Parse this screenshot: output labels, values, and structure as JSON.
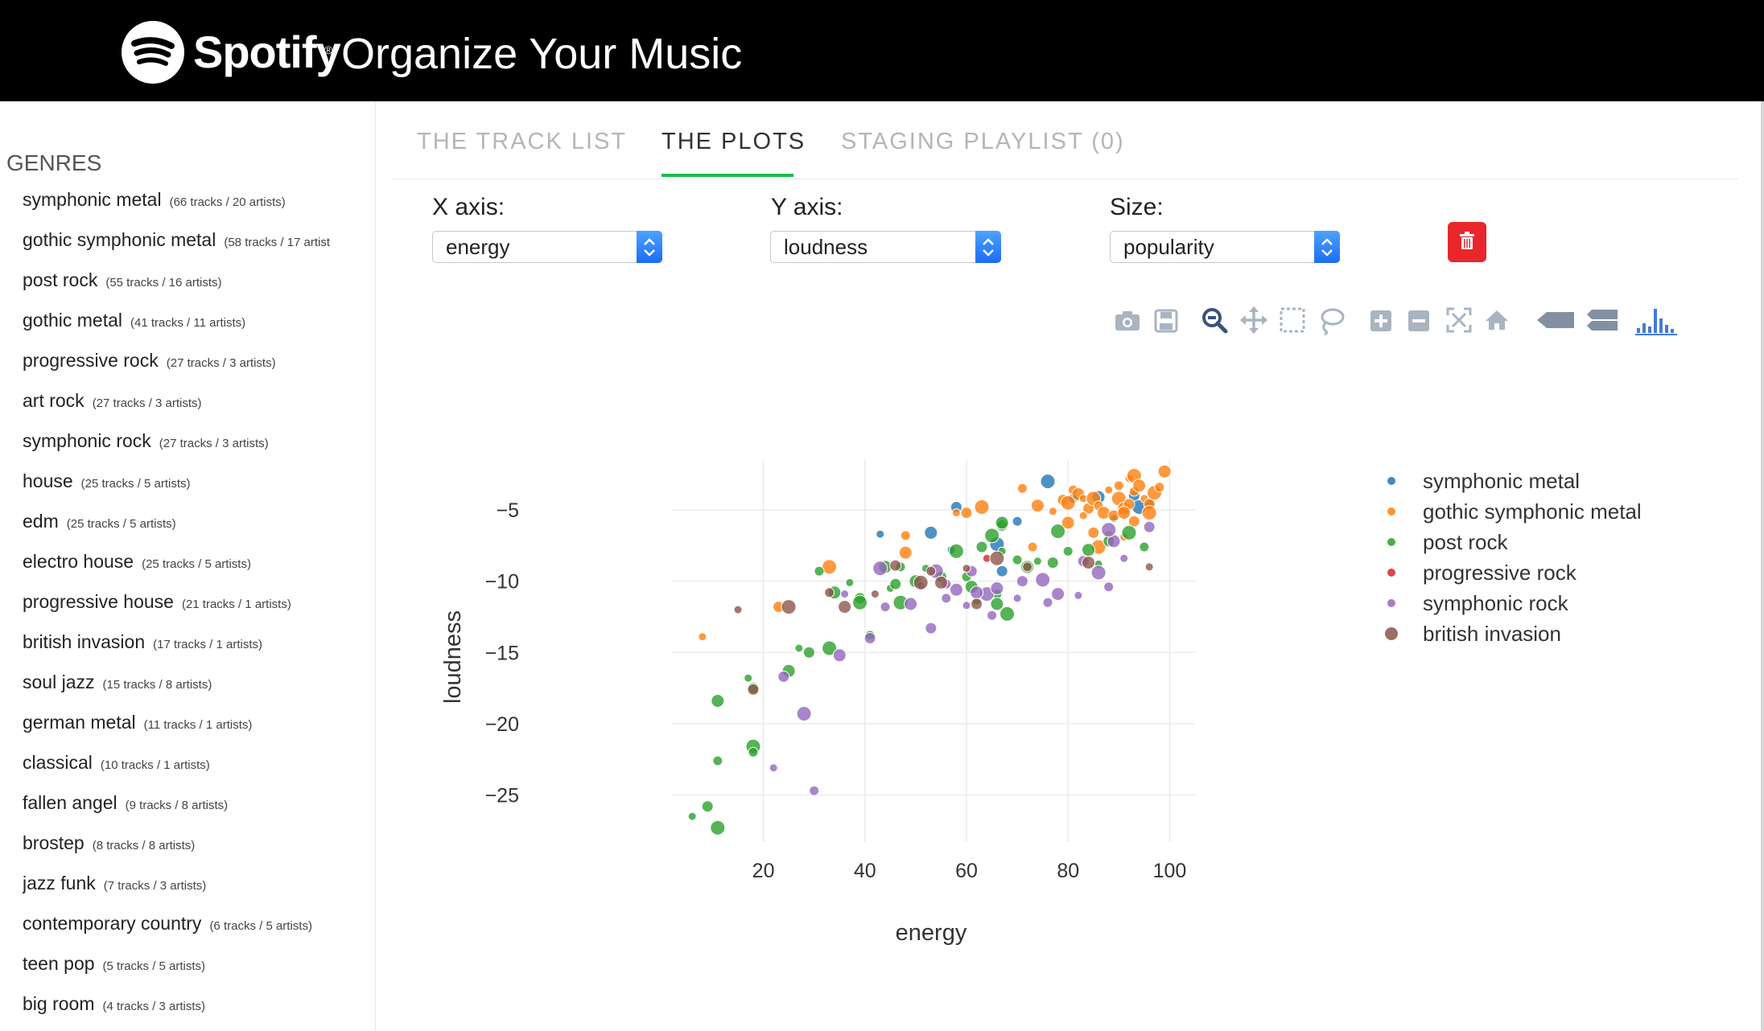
{
  "app": {
    "brand": "Spotify",
    "brand_mark": "®",
    "title": "Organize Your Music"
  },
  "sidebar": {
    "title": "GENRES",
    "genres": [
      {
        "name": "symphonic metal",
        "count": "(66 tracks / 20 artists)"
      },
      {
        "name": "gothic symphonic metal",
        "count": "(58 tracks / 17 artist"
      },
      {
        "name": "post rock",
        "count": "(55 tracks / 16 artists)"
      },
      {
        "name": "gothic metal",
        "count": "(41 tracks / 11 artists)"
      },
      {
        "name": "progressive rock",
        "count": "(27 tracks / 3 artists)"
      },
      {
        "name": "art rock",
        "count": "(27 tracks / 3 artists)"
      },
      {
        "name": "symphonic rock",
        "count": "(27 tracks / 3 artists)"
      },
      {
        "name": "house",
        "count": "(25 tracks / 5 artists)"
      },
      {
        "name": "edm",
        "count": "(25 tracks / 5 artists)"
      },
      {
        "name": "electro house",
        "count": "(25 tracks / 5 artists)"
      },
      {
        "name": "progressive house",
        "count": "(21 tracks / 1 artists)"
      },
      {
        "name": "british invasion",
        "count": "(17 tracks / 1 artists)"
      },
      {
        "name": "soul jazz",
        "count": "(15 tracks / 8 artists)"
      },
      {
        "name": "german metal",
        "count": "(11 tracks / 1 artists)"
      },
      {
        "name": "classical",
        "count": "(10 tracks / 1 artists)"
      },
      {
        "name": "fallen angel",
        "count": "(9 tracks / 8 artists)"
      },
      {
        "name": "brostep",
        "count": "(8 tracks / 8 artists)"
      },
      {
        "name": "jazz funk",
        "count": "(7 tracks / 3 artists)"
      },
      {
        "name": "contemporary country",
        "count": "(6 tracks / 5 artists)"
      },
      {
        "name": "teen pop",
        "count": "(5 tracks / 5 artists)"
      },
      {
        "name": "big room",
        "count": "(4 tracks / 3 artists)"
      }
    ]
  },
  "tabs": [
    {
      "label": "THE TRACK LIST",
      "active": false
    },
    {
      "label": "THE PLOTS",
      "active": true
    },
    {
      "label": "STAGING PLAYLIST (0)",
      "active": false
    }
  ],
  "controls": {
    "x_axis": {
      "label": "X axis:",
      "value": "energy"
    },
    "y_axis": {
      "label": "Y axis:",
      "value": "loudness"
    },
    "size": {
      "label": "Size:",
      "value": "popularity"
    }
  },
  "toolbar": [
    "camera-icon",
    "save-icon",
    "zoom-icon",
    "pan-icon",
    "box-select-icon",
    "lasso-select-icon",
    "zoom-in-icon",
    "zoom-out-icon",
    "autoscale-icon",
    "reset-axes-icon",
    "hover-closest-icon",
    "hover-compare-icon",
    "plotly-logo-icon"
  ],
  "chart_data": {
    "type": "scatter",
    "xlabel": "energy",
    "ylabel": "loudness",
    "xlim": [
      2,
      105
    ],
    "ylim": [
      -28.3,
      -1.5
    ],
    "xticks": [
      20,
      40,
      60,
      80,
      100
    ],
    "yticks": [
      -5,
      -10,
      -15,
      -20,
      -25
    ],
    "xtick_labels": [
      "20",
      "40",
      "60",
      "80",
      "100"
    ],
    "ytick_labels": [
      "−5",
      "−10",
      "−15",
      "−20",
      "−25"
    ],
    "grid": true,
    "legend_position": "right",
    "series": [
      {
        "name": "symphonic metal",
        "color": "#1f77b4",
        "points": [
          [
            43,
            -6.7
          ],
          [
            58,
            -4.8
          ],
          [
            76,
            -3
          ],
          [
            81,
            -4.2
          ],
          [
            86,
            -4.1
          ],
          [
            89,
            -5.6
          ],
          [
            93,
            -4
          ],
          [
            66,
            -7.4
          ],
          [
            70,
            -5.8
          ],
          [
            53,
            -6.6
          ],
          [
            57,
            -7.8
          ],
          [
            67,
            -9.3
          ],
          [
            94,
            -4.8
          ],
          [
            96,
            -4.6
          ]
        ]
      },
      {
        "name": "gothic symphonic metal",
        "color": "#ff7f0e",
        "points": [
          [
            8,
            -13.9
          ],
          [
            23,
            -11.8
          ],
          [
            33,
            -9
          ],
          [
            48,
            -6.8
          ],
          [
            48,
            -8
          ],
          [
            58,
            -5.2
          ],
          [
            60,
            -5.2
          ],
          [
            63,
            -4.8
          ],
          [
            71,
            -3.5
          ],
          [
            74,
            -4.7
          ],
          [
            77,
            -5.1
          ],
          [
            79,
            -4.3
          ],
          [
            80,
            -4.5
          ],
          [
            81,
            -3.6
          ],
          [
            82,
            -3.9
          ],
          [
            83,
            -4.2
          ],
          [
            84,
            -4.9
          ],
          [
            85,
            -4.2
          ],
          [
            86,
            -4.7
          ],
          [
            87,
            -5.2
          ],
          [
            88,
            -3.6
          ],
          [
            89,
            -5.4
          ],
          [
            90,
            -4.2
          ],
          [
            90,
            -3.3
          ],
          [
            91,
            -4.9
          ],
          [
            92,
            -2.8
          ],
          [
            92,
            -4.6
          ],
          [
            93,
            -2.6
          ],
          [
            93,
            -3.7
          ],
          [
            94,
            -3.3
          ],
          [
            95,
            -4.2
          ],
          [
            96,
            -4.6
          ],
          [
            97,
            -3.8
          ],
          [
            98,
            -3.4
          ],
          [
            99,
            -2.3
          ],
          [
            83,
            -5.4
          ],
          [
            85,
            -6.6
          ],
          [
            86,
            -7.6
          ],
          [
            88,
            -6.8
          ],
          [
            91,
            -5.2
          ],
          [
            91,
            -6.9
          ],
          [
            93,
            -5.8
          ],
          [
            96,
            -5.2
          ],
          [
            73,
            -7.6
          ],
          [
            80,
            -5.9
          ]
        ]
      },
      {
        "name": "post rock",
        "color": "#2ca02c",
        "points": [
          [
            6,
            -26.5
          ],
          [
            9,
            -25.8
          ],
          [
            11,
            -27.3
          ],
          [
            11,
            -22.6
          ],
          [
            11,
            -18.4
          ],
          [
            17,
            -16.8
          ],
          [
            18,
            -17.5
          ],
          [
            18,
            -21.6
          ],
          [
            18,
            -22
          ],
          [
            25,
            -16.3
          ],
          [
            27,
            -14.7
          ],
          [
            29,
            -15
          ],
          [
            33,
            -14.7
          ],
          [
            31,
            -9.3
          ],
          [
            34,
            -10.8
          ],
          [
            37,
            -10.1
          ],
          [
            39,
            -11.2
          ],
          [
            39,
            -11.5
          ],
          [
            41,
            -13.8
          ],
          [
            44,
            -9
          ],
          [
            45,
            -10.5
          ],
          [
            46,
            -10.2
          ],
          [
            47,
            -11.5
          ],
          [
            47,
            -9
          ],
          [
            50,
            -10
          ],
          [
            52,
            -9.1
          ],
          [
            55,
            -9.7
          ],
          [
            58,
            -7.9
          ],
          [
            60,
            -9.7
          ],
          [
            61,
            -10.4
          ],
          [
            62,
            -11.4
          ],
          [
            63,
            -7.6
          ],
          [
            65,
            -6.8
          ],
          [
            66,
            -10.9
          ],
          [
            66,
            -11.6
          ],
          [
            67,
            -7.9
          ],
          [
            67,
            -6.1
          ],
          [
            68,
            -12.3
          ],
          [
            70,
            -8.5
          ],
          [
            72,
            -9
          ],
          [
            74,
            -8.6
          ],
          [
            77,
            -8.7
          ],
          [
            78,
            -6.5
          ],
          [
            80,
            -7.9
          ],
          [
            84,
            -7.8
          ],
          [
            86,
            -8.8
          ],
          [
            88,
            -7.2
          ],
          [
            92,
            -6.6
          ],
          [
            95,
            -7.6
          ],
          [
            67,
            -5.9
          ]
        ]
      },
      {
        "name": "progressive rock",
        "color": "#d62728",
        "points": [
          [
            64,
            -8.4
          ]
        ]
      },
      {
        "name": "symphonic rock",
        "color": "#9467bd",
        "points": [
          [
            22,
            -23.1
          ],
          [
            24,
            -16.7
          ],
          [
            28,
            -19.3
          ],
          [
            30,
            -24.7
          ],
          [
            35,
            -15.2
          ],
          [
            36,
            -10.9
          ],
          [
            41,
            -14
          ],
          [
            43,
            -9.1
          ],
          [
            44,
            -11.8
          ],
          [
            49,
            -11.6
          ],
          [
            51,
            -10.3
          ],
          [
            53,
            -13.3
          ],
          [
            54,
            -9.3
          ],
          [
            56,
            -11.2
          ],
          [
            58,
            -10.6
          ],
          [
            60,
            -11.7
          ],
          [
            61,
            -9.3
          ],
          [
            64,
            -10.9
          ],
          [
            65,
            -12.4
          ],
          [
            66,
            -10.5
          ],
          [
            70,
            -11.2
          ],
          [
            71,
            -10
          ],
          [
            75,
            -9.9
          ],
          [
            76,
            -11.5
          ],
          [
            78,
            -10.9
          ],
          [
            82,
            -11
          ],
          [
            83,
            -8.6
          ],
          [
            86,
            -9.4
          ],
          [
            88,
            -10.4
          ],
          [
            89,
            -7.2
          ],
          [
            91,
            -8.4
          ],
          [
            96,
            -6.2
          ],
          [
            88,
            -6.4
          ],
          [
            56,
            -10.2
          ],
          [
            62,
            -10.8
          ]
        ]
      },
      {
        "name": "british invasion",
        "color": "#8c564b",
        "points": [
          [
            15,
            -12
          ],
          [
            18,
            -17.6
          ],
          [
            25,
            -11.8
          ],
          [
            33,
            -10.8
          ],
          [
            36,
            -11.8
          ],
          [
            42,
            -10.9
          ],
          [
            46,
            -8.9
          ],
          [
            51,
            -10.1
          ],
          [
            53,
            -9.3
          ],
          [
            55,
            -10.1
          ],
          [
            60,
            -9.1
          ],
          [
            62,
            -11.6
          ],
          [
            66,
            -8.4
          ],
          [
            72,
            -9
          ],
          [
            84,
            -8.7
          ],
          [
            96,
            -9
          ]
        ]
      }
    ]
  }
}
